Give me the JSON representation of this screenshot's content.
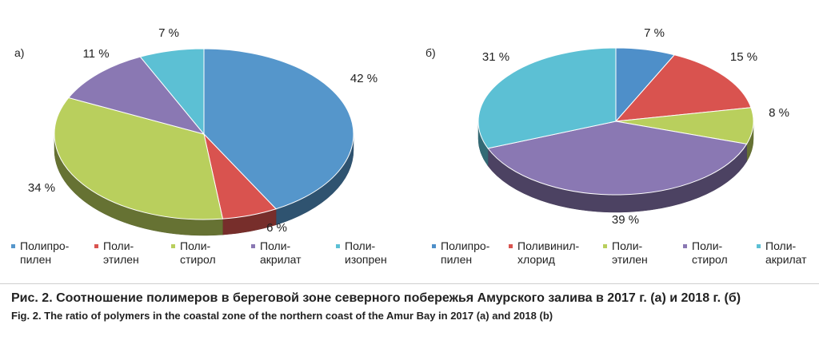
{
  "chart_data": [
    {
      "type": "pie",
      "panel_label": "а)",
      "labels": [
        "Полипро-\nпилен",
        "Поли-\nэтилен",
        "Поли-\nстирол",
        "Поли-\nакрилат",
        "Поли-\nизопрен"
      ],
      "values": [
        42,
        6,
        34,
        11,
        7
      ],
      "value_labels": [
        "42 %",
        "6 %",
        "34 %",
        "11 %",
        "7 %"
      ],
      "colors": [
        "#5596cb",
        "#d9534f",
        "#b9cf5d",
        "#8a78b3",
        "#5cc0d4"
      ],
      "legend_position": "bottom"
    },
    {
      "type": "pie",
      "panel_label": "б)",
      "labels": [
        "Полипро-\nпилен",
        "Поливинил-\nхлорид",
        "Поли-\nэтилен",
        "Поли-\nстирол",
        "Поли-\nакрилат"
      ],
      "values": [
        7,
        15,
        8,
        39,
        31
      ],
      "value_labels": [
        "7 %",
        "15 %",
        "8 %",
        "39 %",
        "31 %"
      ],
      "colors": [
        "#4e8fc9",
        "#d9534f",
        "#b9cf5d",
        "#8a78b3",
        "#5cc0d4"
      ],
      "legend_position": "bottom"
    }
  ],
  "caption": {
    "ru": "Рис. 2. Соотношение полимеров в береговой зоне северного побережья Амурского залива в 2017 г. (а) и 2018 г. (б)",
    "en": "Fig. 2. The ratio of polymers in the coastal zone of the northern coast of the Amur Bay in 2017 (a) and 2018 (b)"
  }
}
